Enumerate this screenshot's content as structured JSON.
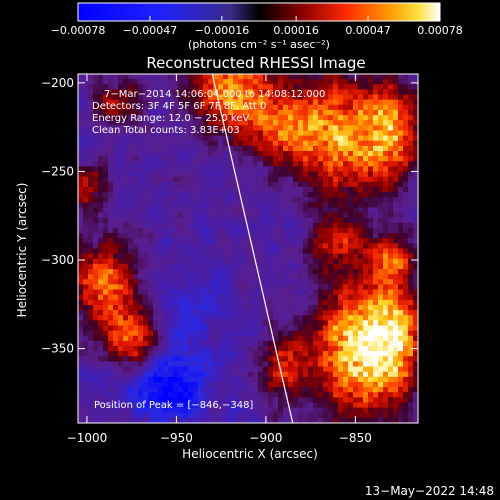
{
  "chart_data": {
    "type": "heatmap",
    "title": "Reconstructed RHESSI Image",
    "xlabel": "Heliocentric X (arcsec)",
    "ylabel": "Heliocentric Y (arcsec)",
    "xlim": [
      -1005,
      -815
    ],
    "ylim": [
      -392,
      -195
    ],
    "x_ticks": [
      -1000,
      -950,
      -900,
      -850
    ],
    "x_tick_labels": [
      "−1000",
      "−950",
      "−900",
      "−850"
    ],
    "y_ticks": [
      -200,
      -250,
      -300,
      -350
    ],
    "y_tick_labels": [
      "−200",
      "−250",
      "−300",
      "−350"
    ],
    "colorbar": {
      "ticks": [
        -0.00078,
        -0.00047,
        -0.00016,
        0.00016,
        0.00047,
        0.00078
      ],
      "tick_labels": [
        "−0.00078",
        "−0.00047",
        "−0.00016",
        "0.00016",
        "0.00047",
        "0.00078"
      ],
      "units_label": "(photons cm⁻² s⁻¹ asec⁻²)"
    },
    "annotations": [
      "7−Mar−2014 14:06:04.000 to 14:08:12.000",
      "Detectors: 3F 4F 5F 6F 7F 8F, Att 0",
      "Energy Range: 12.0 − 25.0 keV",
      "Clean      Total counts: 3.83E+03"
    ],
    "peak_label": "Position of Peak = [−846,−348]",
    "peak": [
      -846,
      -348
    ],
    "limb_line": [
      [
        -930,
        -195
      ],
      [
        -885,
        -392
      ]
    ],
    "intensity_sources": [
      {
        "x": -848,
        "y": -350,
        "sx": 16,
        "sy": 24,
        "amp": 1.25
      },
      {
        "x": -828,
        "y": -345,
        "sx": 10,
        "sy": 20,
        "amp": 0.95
      },
      {
        "x": -918,
        "y": -205,
        "sx": 16,
        "sy": 16,
        "amp": 0.95
      },
      {
        "x": -858,
        "y": -230,
        "sx": 20,
        "sy": 22,
        "amp": 0.95
      },
      {
        "x": -830,
        "y": -228,
        "sx": 10,
        "sy": 18,
        "amp": 0.8
      },
      {
        "x": -890,
        "y": -225,
        "sx": 14,
        "sy": 12,
        "amp": 0.6
      },
      {
        "x": -990,
        "y": -315,
        "sx": 12,
        "sy": 16,
        "amp": 0.85
      },
      {
        "x": -975,
        "y": -345,
        "sx": 10,
        "sy": 12,
        "amp": 0.75
      },
      {
        "x": -1000,
        "y": -260,
        "sx": 7,
        "sy": 9,
        "amp": 0.55
      },
      {
        "x": -982,
        "y": -210,
        "sx": 10,
        "sy": 8,
        "amp": 0.45
      },
      {
        "x": -860,
        "y": -290,
        "sx": 10,
        "sy": 10,
        "amp": 0.55
      },
      {
        "x": -830,
        "y": -300,
        "sx": 8,
        "sy": 10,
        "amp": 0.65
      },
      {
        "x": -890,
        "y": -360,
        "sx": 10,
        "sy": 14,
        "amp": 0.55
      },
      {
        "x": -955,
        "y": -372,
        "sx": 16,
        "sy": 14,
        "amp": -0.55
      },
      {
        "x": -940,
        "y": -330,
        "sx": 16,
        "sy": 16,
        "amp": -0.2
      }
    ]
  }
}
